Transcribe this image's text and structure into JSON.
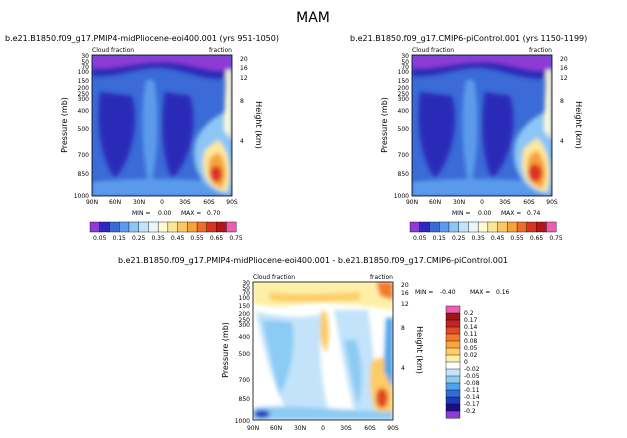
{
  "figure_title": "MAM",
  "chart_data": [
    {
      "type": "heatmap",
      "title": "b.e21.B1850.f09_g17.PMIP4-midPliocene-eoi400.001  (yrs 951-1050)",
      "left_string": "Cloud fraction",
      "right_string": "fraction",
      "ylabel": "Pressure  (mb)",
      "ylabel_right": "Height  (km)",
      "x_tick_labels": [
        "90N",
        "60N",
        "30N",
        "0",
        "30S",
        "60S",
        "90S"
      ],
      "y_tick_labels": [
        "30",
        "50",
        "70",
        "100",
        "150",
        "200",
        "250",
        "300",
        "400",
        "500",
        "700",
        "850",
        "1000"
      ],
      "y_right_tick_labels": [
        "20",
        "16",
        "12",
        "8",
        "4"
      ],
      "xlim": [
        90,
        -90
      ],
      "ylim": [
        1000,
        30
      ],
      "log_pressure_axis": true,
      "min_label": "MIN =",
      "min_value": "0.00",
      "max_label": "MAX =",
      "max_value": "0.70",
      "colorbar": {
        "orientation": "horizontal",
        "labels": [
          "0.05",
          "0.15",
          "0.25",
          "0.35",
          "0.45",
          "0.55",
          "0.65",
          "0.75"
        ],
        "colors": [
          "#8e3ad6",
          "#2c2ab8",
          "#3a6bd6",
          "#5b9bec",
          "#8cc6f4",
          "#bfe4fb",
          "#eaf6ff",
          "#fffbd4",
          "#fde89a",
          "#fcc764",
          "#f7a33a",
          "#ee6b28",
          "#dc3220",
          "#b31717",
          "#ee5fb0"
        ]
      }
    },
    {
      "type": "heatmap",
      "title": "b.e21.B1850.f09_g17.CMIP6-piControl.001  (yrs 1150-1199)",
      "left_string": "Cloud fraction",
      "right_string": "fraction",
      "ylabel": "Pressure  (mb)",
      "ylabel_right": "Height  (km)",
      "x_tick_labels": [
        "90N",
        "60N",
        "30N",
        "0",
        "30S",
        "60S",
        "90S"
      ],
      "y_tick_labels": [
        "30",
        "50",
        "70",
        "100",
        "150",
        "200",
        "250",
        "300",
        "400",
        "500",
        "700",
        "850",
        "1000"
      ],
      "y_right_tick_labels": [
        "20",
        "16",
        "12",
        "8",
        "4"
      ],
      "xlim": [
        90,
        -90
      ],
      "ylim": [
        1000,
        30
      ],
      "log_pressure_axis": true,
      "min_label": "MIN =",
      "min_value": "0.00",
      "max_label": "MAX =",
      "max_value": "0.74",
      "colorbar": {
        "orientation": "horizontal",
        "labels": [
          "0.05",
          "0.15",
          "0.25",
          "0.35",
          "0.45",
          "0.55",
          "0.65",
          "0.75"
        ],
        "colors": [
          "#8e3ad6",
          "#2c2ab8",
          "#3a6bd6",
          "#5b9bec",
          "#8cc6f4",
          "#bfe4fb",
          "#eaf6ff",
          "#fffbd4",
          "#fde89a",
          "#fcc764",
          "#f7a33a",
          "#ee6b28",
          "#dc3220",
          "#b31717",
          "#ee5fb0"
        ]
      }
    },
    {
      "type": "heatmap",
      "title": "b.e21.B1850.f09_g17.PMIP4-midPliocene-eoi400.001  -  b.e21.B1850.f09_g17.CMIP6-piControl.001",
      "left_string": "Cloud fraction",
      "right_string": "fraction",
      "ylabel": "Pressure  (mb)",
      "ylabel_right": "Height  (km)",
      "x_tick_labels": [
        "90N",
        "60N",
        "30N",
        "0",
        "30S",
        "60S",
        "90S"
      ],
      "y_tick_labels": [
        "30",
        "50",
        "70",
        "100",
        "150",
        "200",
        "250",
        "300",
        "400",
        "500",
        "700",
        "850",
        "1000"
      ],
      "y_right_tick_labels": [
        "20",
        "16",
        "12",
        "8",
        "4"
      ],
      "xlim": [
        90,
        -90
      ],
      "ylim": [
        1000,
        30
      ],
      "log_pressure_axis": true,
      "min_label": "MIN =",
      "min_value": "-0.40",
      "max_label": "MAX =",
      "max_value": "0.16",
      "colorbar": {
        "orientation": "vertical",
        "labels": [
          "0.2",
          "0.17",
          "0.14",
          "0.11",
          "0.08",
          "0.05",
          "0.02",
          "0",
          "-0.02",
          "-0.05",
          "-0.08",
          "-0.11",
          "-0.14",
          "-0.17",
          "-0.2"
        ],
        "colors": [
          "#ee5fb0",
          "#9e1616",
          "#c52222",
          "#e04a24",
          "#f27a2c",
          "#f8a63c",
          "#fccd64",
          "#fdf0a6",
          "#ffffff",
          "#c2e3fa",
          "#8ccbf3",
          "#4fa2ec",
          "#2f6ed8",
          "#2239bd",
          "#1a0f86",
          "#8e3ad6"
        ]
      }
    }
  ]
}
